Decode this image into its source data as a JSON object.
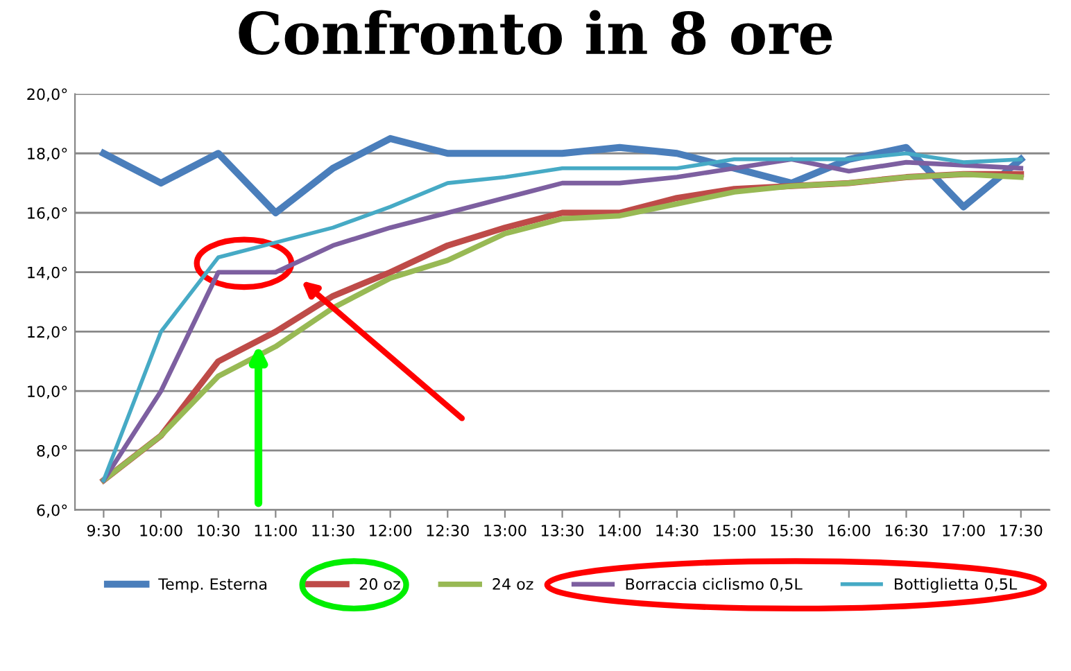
{
  "chart_data": {
    "type": "line",
    "title": "Confronto in 8 ore",
    "categories": [
      "9:30",
      "10:00",
      "10:30",
      "11:00",
      "11:30",
      "12:00",
      "12:30",
      "13:00",
      "13:30",
      "14:00",
      "14:30",
      "15:00",
      "15:30",
      "16:00",
      "16:30",
      "17:00",
      "17:30"
    ],
    "series": [
      {
        "name": "Temp. Esterna",
        "color": "#4a7ebb",
        "values": [
          18,
          17,
          18,
          16,
          17.5,
          18.5,
          18,
          18,
          18,
          18.2,
          18,
          17.5,
          17,
          17.8,
          18.2,
          16.2,
          17.8
        ]
      },
      {
        "name": "20 oz",
        "color": "#be4b48",
        "values": [
          7,
          8.5,
          11,
          12,
          13.2,
          14,
          14.9,
          15.5,
          16,
          16,
          16.5,
          16.8,
          16.9,
          17,
          17.2,
          17.3,
          17.3
        ]
      },
      {
        "name": "24 oz",
        "color": "#98b954",
        "values": [
          7,
          8.5,
          10.5,
          11.5,
          12.8,
          13.8,
          14.4,
          15.3,
          15.8,
          15.9,
          16.3,
          16.7,
          16.9,
          17,
          17.2,
          17.3,
          17.2
        ]
      },
      {
        "name": "Borraccia ciclismo 0,5L",
        "color": "#7d5fa0",
        "values": [
          7,
          10,
          14,
          14,
          14.9,
          15.5,
          16,
          16.5,
          17,
          17,
          17.2,
          17.5,
          17.8,
          17.4,
          17.7,
          17.6,
          17.5
        ]
      },
      {
        "name": "Bottiglietta 0,5L",
        "color": "#46aac5",
        "values": [
          7,
          12,
          14.5,
          15,
          15.5,
          16.2,
          17,
          17.2,
          17.5,
          17.5,
          17.5,
          17.8,
          17.8,
          17.8,
          18,
          17.7,
          17.8
        ]
      }
    ],
    "ylim": [
      6,
      20
    ],
    "yticks": [
      {
        "value": 6,
        "label": "6,0°"
      },
      {
        "value": 8,
        "label": "8,0°"
      },
      {
        "value": 10,
        "label": "10,0°"
      },
      {
        "value": 12,
        "label": "12,0°"
      },
      {
        "value": 14,
        "label": "14,0°"
      },
      {
        "value": 16,
        "label": "16,0°"
      },
      {
        "value": 18,
        "label": "18,0°"
      },
      {
        "value": 20,
        "label": "20,0°"
      }
    ],
    "grid": "y",
    "legend": "bottom",
    "marker": "none",
    "line_style": "solid"
  }
}
